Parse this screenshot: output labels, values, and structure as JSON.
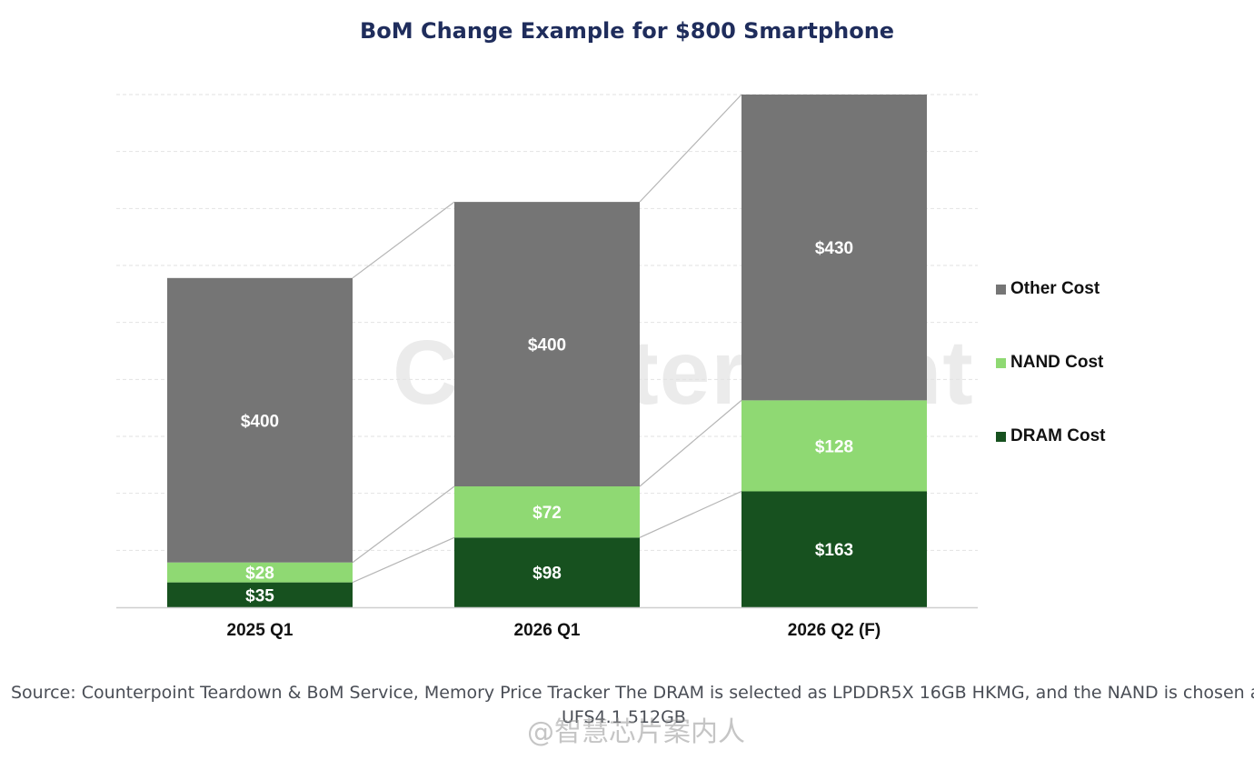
{
  "chart_data": {
    "type": "bar",
    "stacked": true,
    "title": "BoM Change Example for $800 Smartphone",
    "categories": [
      "2025 Q1",
      "2026 Q1",
      "2026 Q2 (F)"
    ],
    "series": [
      {
        "name": "DRAM Cost",
        "color": "#17511f",
        "values": [
          35,
          98,
          163
        ],
        "labels": [
          "$35",
          "$98",
          "$163"
        ]
      },
      {
        "name": "NAND Cost",
        "color": "#8fd973",
        "values": [
          28,
          72,
          128
        ],
        "labels": [
          "$28",
          "$72",
          "$128"
        ]
      },
      {
        "name": "Other Cost",
        "color": "#757575",
        "values": [
          400,
          400,
          430
        ],
        "labels": [
          "$400",
          "$400",
          "$430"
        ]
      }
    ],
    "ylim": [
      0,
      721
    ],
    "legend_order": [
      "Other Cost",
      "NAND Cost",
      "DRAM Cost"
    ],
    "legend_position": "right",
    "grid": true
  },
  "source": {
    "line1": "Source: Counterpoint Teardown & BoM Service, Memory Price Tracker The DRAM is selected as LPDDR5X 16GB HKMG, and the NAND is chosen as",
    "line2": "UFS4.1 512GB"
  },
  "watermark": {
    "brand": "Counterpoint",
    "weibo": "@智慧芯片案内人"
  }
}
